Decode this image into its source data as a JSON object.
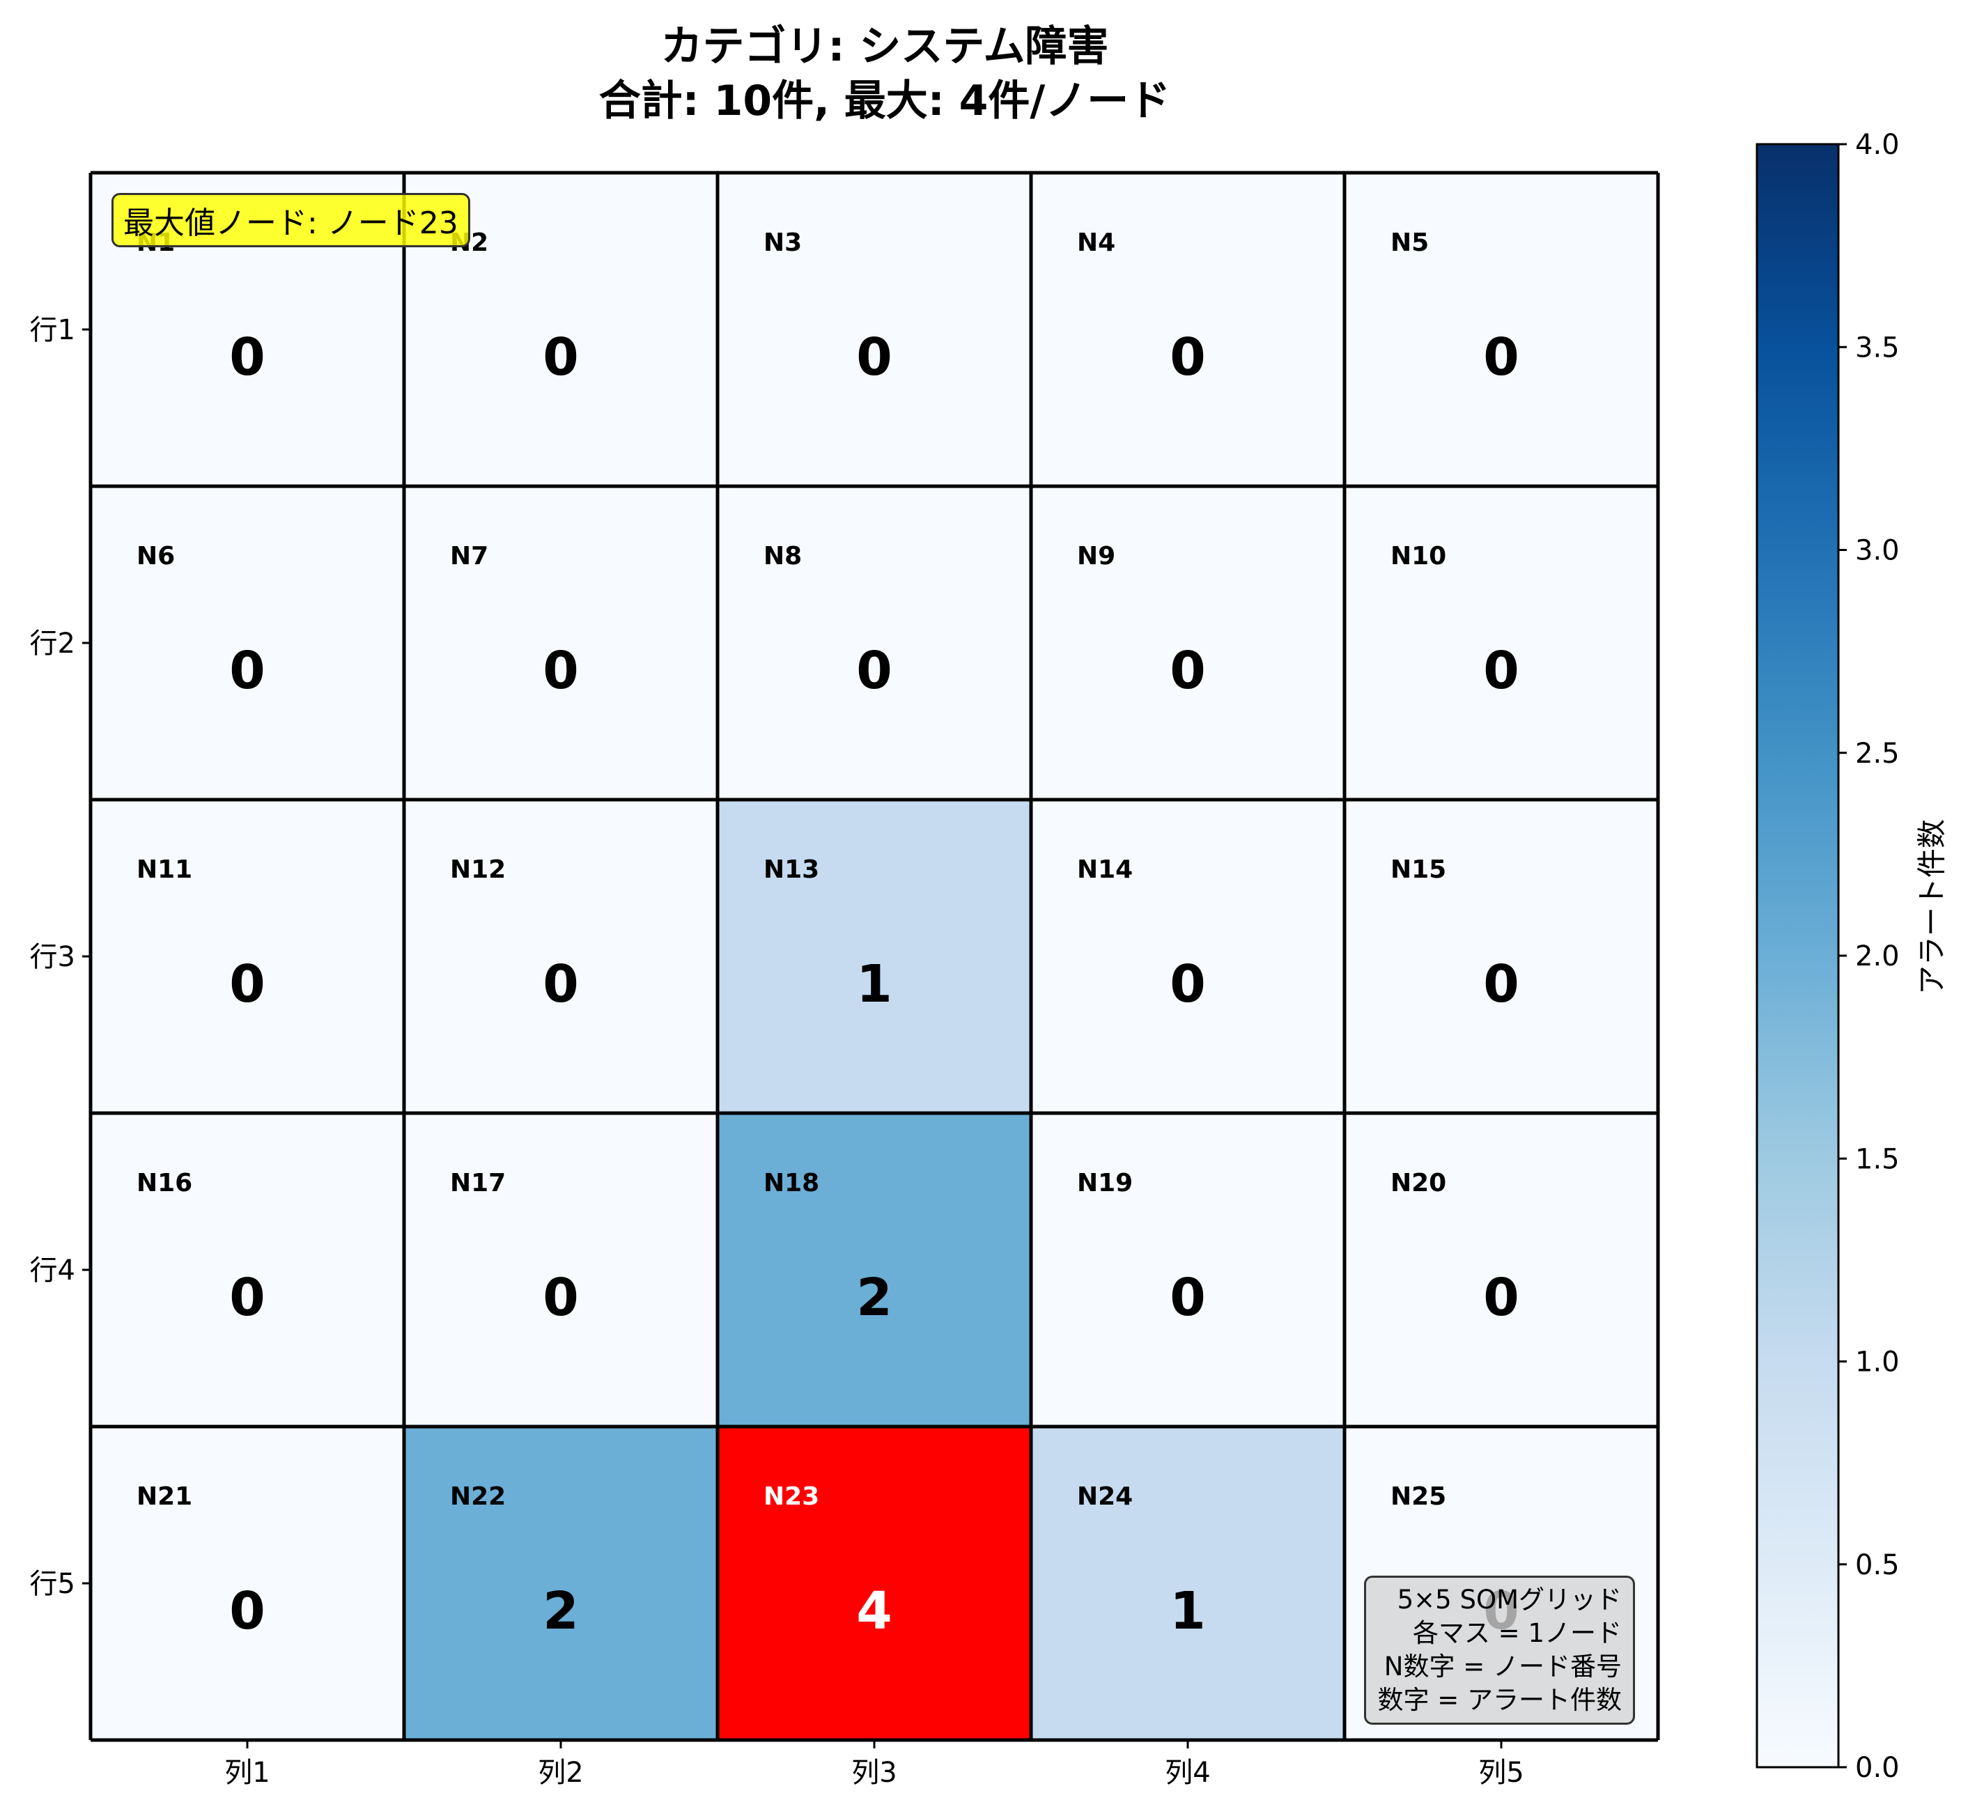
{
  "title": {
    "line1": "カテゴリ: システム障害",
    "line2": "合計: 10件, 最大: 4件/ノード"
  },
  "chart_data": {
    "type": "heatmap",
    "rows": [
      "行1",
      "行2",
      "行3",
      "行4",
      "行5"
    ],
    "columns": [
      "列1",
      "列2",
      "列3",
      "列4",
      "列5"
    ],
    "node_labels": [
      [
        "N1",
        "N2",
        "N3",
        "N4",
        "N5"
      ],
      [
        "N6",
        "N7",
        "N8",
        "N9",
        "N10"
      ],
      [
        "N11",
        "N12",
        "N13",
        "N14",
        "N15"
      ],
      [
        "N16",
        "N17",
        "N18",
        "N19",
        "N20"
      ],
      [
        "N21",
        "N22",
        "N23",
        "N24",
        "N25"
      ]
    ],
    "values": [
      [
        0,
        0,
        0,
        0,
        0
      ],
      [
        0,
        0,
        0,
        0,
        0
      ],
      [
        0,
        0,
        1,
        0,
        0
      ],
      [
        0,
        0,
        2,
        0,
        0
      ],
      [
        0,
        2,
        4,
        1,
        0
      ]
    ],
    "highlight": {
      "row": 4,
      "col": 2,
      "color": "#ff0000"
    },
    "colormap": "Blues",
    "colorbar": {
      "label": "アラート件数",
      "range": [
        0,
        4
      ],
      "ticks": [
        "0.0",
        "0.5",
        "1.0",
        "1.5",
        "2.0",
        "2.5",
        "3.0",
        "3.5",
        "4.0"
      ]
    }
  },
  "annotations": {
    "max_node": "最大値ノード: ノード23",
    "info_lines": [
      "5×5 SOMグリッド",
      "各マス = 1ノード",
      "N数字 = ノード番号",
      "数字 = アラート件数"
    ]
  }
}
